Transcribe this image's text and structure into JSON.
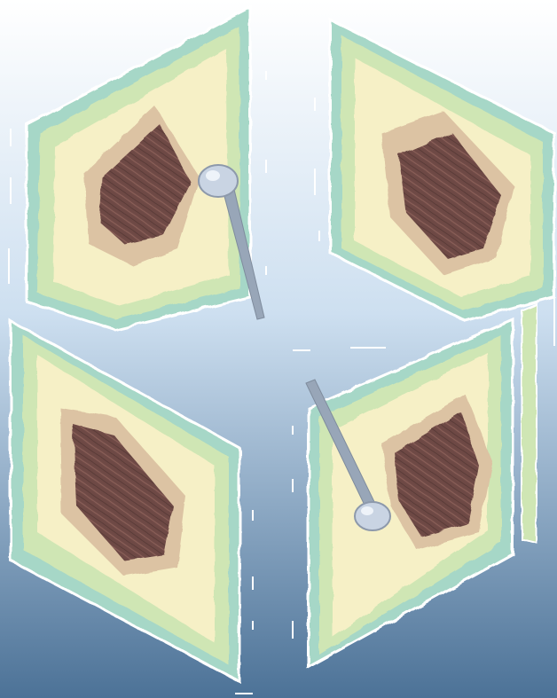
{
  "scene": {
    "description_free": true,
    "panels": [
      {
        "id": "panel-top-left",
        "probe": true
      },
      {
        "id": "panel-top-right",
        "probe": false
      },
      {
        "id": "panel-bottom-left",
        "probe": false
      },
      {
        "id": "panel-bottom-right",
        "probe": true
      }
    ],
    "colors": {
      "background_top": "#ffffff",
      "background_mid": "#cddff0",
      "background_bottom": "#4c7297",
      "panel_edge": "#9fd4c2",
      "panel_green": "#cfe6b4",
      "panel_yellow": "#f6f0c6",
      "panel_tan": "#d9b99a",
      "panel_core": "#6e4a45",
      "probe_head": "#c9d4e3",
      "probe_shaft": "#98a6b8",
      "outline": "#ffffff"
    }
  }
}
